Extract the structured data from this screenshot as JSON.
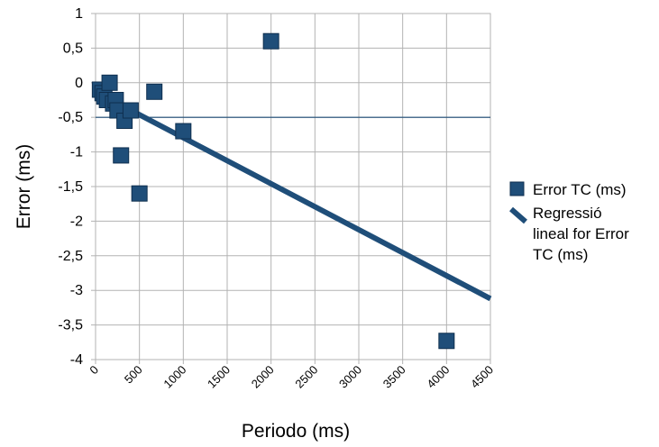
{
  "chart_data": {
    "type": "scatter",
    "title": "",
    "xlabel": "Periodo (ms)",
    "ylabel": "Error (ms)",
    "xlim": [
      0,
      4500
    ],
    "ylim": [
      -4,
      1
    ],
    "x_ticks": [
      0,
      500,
      1000,
      1500,
      2000,
      2500,
      3000,
      3500,
      4000,
      4500
    ],
    "x_tick_labels": [
      "0",
      "500",
      "1000",
      "1500",
      "2000",
      "2500",
      "3000",
      "3500",
      "4000",
      "4500"
    ],
    "y_ticks": [
      1,
      0.5,
      0,
      -0.5,
      -1,
      -1.5,
      -2,
      -2.5,
      -3,
      -3.5,
      -4
    ],
    "y_tick_labels": [
      "1",
      "0,5",
      "0",
      "-0,5",
      "-1",
      "-1,5",
      "-2",
      "-2,5",
      "-3",
      "-3,5",
      "-4"
    ],
    "grid": true,
    "legend_position": "right",
    "series": [
      {
        "name": "Error TC (ms)",
        "kind": "scatter",
        "color": "#1f4e79",
        "points": [
          {
            "x": 50,
            "y": -0.1
          },
          {
            "x": 80,
            "y": -0.15
          },
          {
            "x": 100,
            "y": -0.2
          },
          {
            "x": 130,
            "y": -0.25
          },
          {
            "x": 160,
            "y": 0.0
          },
          {
            "x": 200,
            "y": -0.3
          },
          {
            "x": 230,
            "y": -0.25
          },
          {
            "x": 250,
            "y": -0.4
          },
          {
            "x": 290,
            "y": -1.05
          },
          {
            "x": 330,
            "y": -0.55
          },
          {
            "x": 400,
            "y": -0.4
          },
          {
            "x": 500,
            "y": -1.6
          },
          {
            "x": 670,
            "y": -0.13
          },
          {
            "x": 1000,
            "y": -0.7
          },
          {
            "x": 2000,
            "y": 0.6
          },
          {
            "x": 4000,
            "y": -3.73
          }
        ]
      },
      {
        "name": "Regressió lineal for Error TC (ms)",
        "kind": "line",
        "color": "#1f4e79",
        "legend_lines": [
          "Regressió",
          "lineal for Error",
          "TC (ms)"
        ],
        "points": [
          {
            "x": 0,
            "y": -0.13
          },
          {
            "x": 4500,
            "y": -3.12
          }
        ]
      }
    ],
    "reference_line": {
      "y": -0.5,
      "color": "#1f4e79"
    }
  }
}
